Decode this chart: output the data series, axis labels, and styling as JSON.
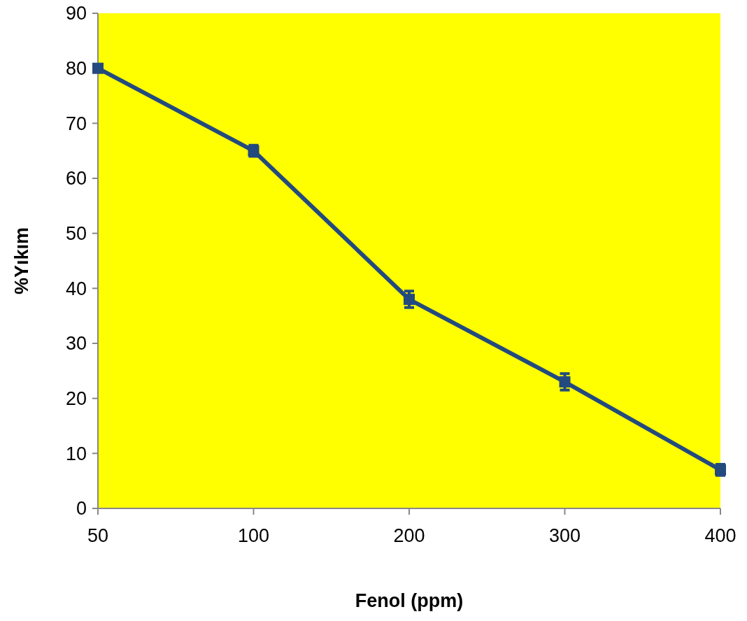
{
  "chart_data": {
    "type": "line",
    "xlabel": "Fenol (ppm)",
    "ylabel": "%Yıkım",
    "categories": [
      "50",
      "100",
      "200",
      "300",
      "400"
    ],
    "series": [
      {
        "color": "#234a7e",
        "values": [
          80,
          65,
          38,
          23,
          7
        ],
        "errors": [
          0.5,
          1,
          1.5,
          1.5,
          1
        ]
      }
    ],
    "ylim": [
      0,
      90
    ],
    "yticks": [
      0,
      10,
      20,
      30,
      40,
      50,
      60,
      70,
      80,
      90
    ],
    "grid": false,
    "marker": "square",
    "line_style": "solid"
  }
}
